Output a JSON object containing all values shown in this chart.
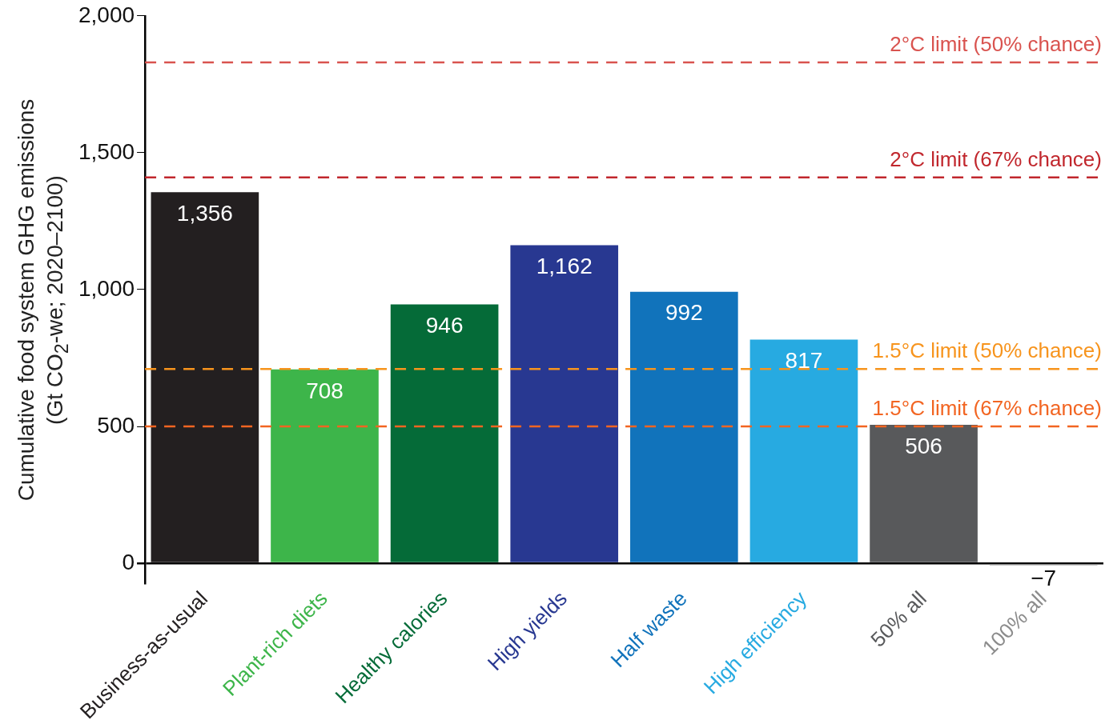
{
  "chart_data": {
    "type": "bar",
    "ylabel": "Cumulative food system GHG emissions\n(Gt CO$_{2}$-we; 2020–2100)",
    "categories": [
      "Business-as-usual",
      "Plant-rich diets",
      "Healthy calories",
      "High yields",
      "Half waste",
      "High efficiency",
      "50% all",
      "100% all"
    ],
    "values": [
      1356,
      708,
      946,
      1162,
      992,
      817,
      506,
      -7
    ],
    "colors": [
      "#231f20",
      "#3db54a",
      "#056b38",
      "#283891",
      "#1173bb",
      "#27aae1",
      "#58595b",
      "#8c8c8c"
    ],
    "value_labels": [
      "1,356",
      "708",
      "946",
      "1,162",
      "992",
      "817",
      "506",
      "−7"
    ],
    "ylim": [
      -75,
      2000
    ],
    "yticks": [
      0,
      500,
      {
        "value": 1000,
        "label": "1,000"
      },
      {
        "value": 1500,
        "label": "1,500"
      },
      {
        "value": 2000,
        "label": "2,000"
      }
    ],
    "ref_lines": [
      {
        "axis": "y",
        "value": 1830,
        "label": "2°C limit (50% chance)",
        "color": "#d9534f",
        "line_style": "dashed"
      },
      {
        "axis": "y",
        "value": 1410,
        "label": "2°C limit (67% chance)",
        "color": "#c1272d",
        "line_style": "dashed"
      },
      {
        "axis": "y",
        "value": 710,
        "label": "1.5°C limit (50% chance)",
        "color": "#f7941d",
        "line_style": "dashed"
      },
      {
        "axis": "y",
        "value": 500,
        "label": "1.5°C limit (67% chance)",
        "color": "#f26522",
        "line_style": "dashed"
      }
    ],
    "grid": false,
    "legend": false
  }
}
